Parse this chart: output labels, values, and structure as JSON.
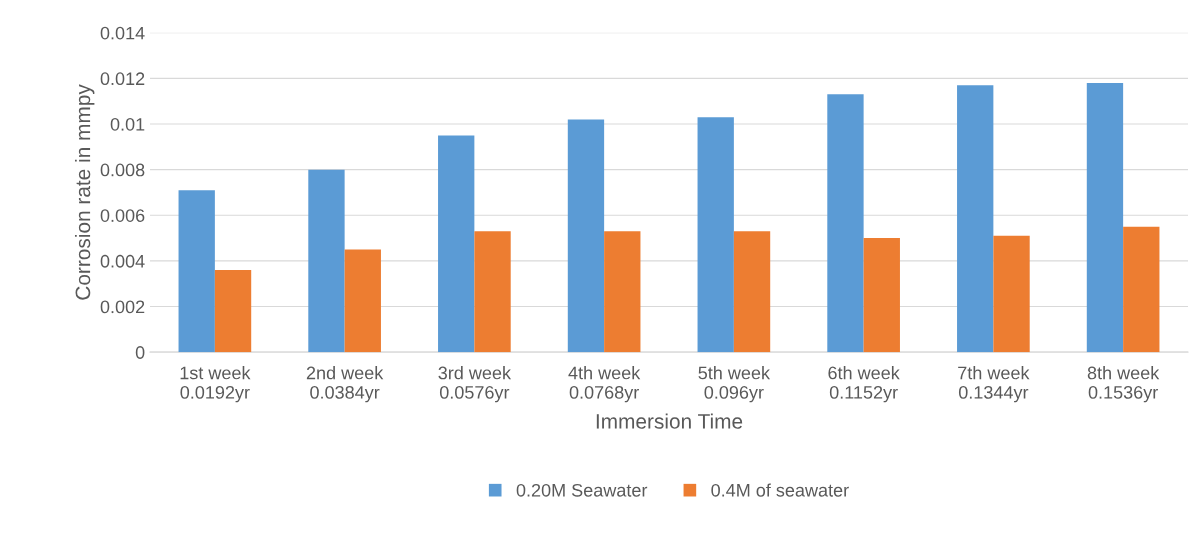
{
  "chart_data": {
    "type": "bar",
    "xlabel": "Immersion Time",
    "ylabel": "Corrosion rate in mmpy",
    "categories": [
      "1st week\n0.0192yr",
      "2nd week\n0.0384yr",
      "3rd week\n0.0576yr",
      "4th week\n0.0768yr",
      "5th week\n0.096yr",
      "6th week\n0.1152yr",
      "7th week\n0.1344yr",
      "8th week\n0.1536yr"
    ],
    "series": [
      {
        "name": "0.20M Seawater",
        "color": "#5b9bd5",
        "values": [
          0.0071,
          0.008,
          0.0095,
          0.0102,
          0.0103,
          0.0113,
          0.0117,
          0.0118
        ]
      },
      {
        "name": "0.4M of seawater",
        "color": "#ed7d31",
        "values": [
          0.0036,
          0.0045,
          0.0053,
          0.0053,
          0.0053,
          0.005,
          0.0051,
          0.0055
        ]
      }
    ],
    "ylim": [
      0,
      0.014
    ],
    "yticks": [
      {
        "value": 0,
        "label": "0"
      },
      0.002,
      0.004,
      0.006,
      0.008,
      0.01,
      0.012,
      0.014
    ],
    "grid": "y",
    "legend": "bottom"
  }
}
